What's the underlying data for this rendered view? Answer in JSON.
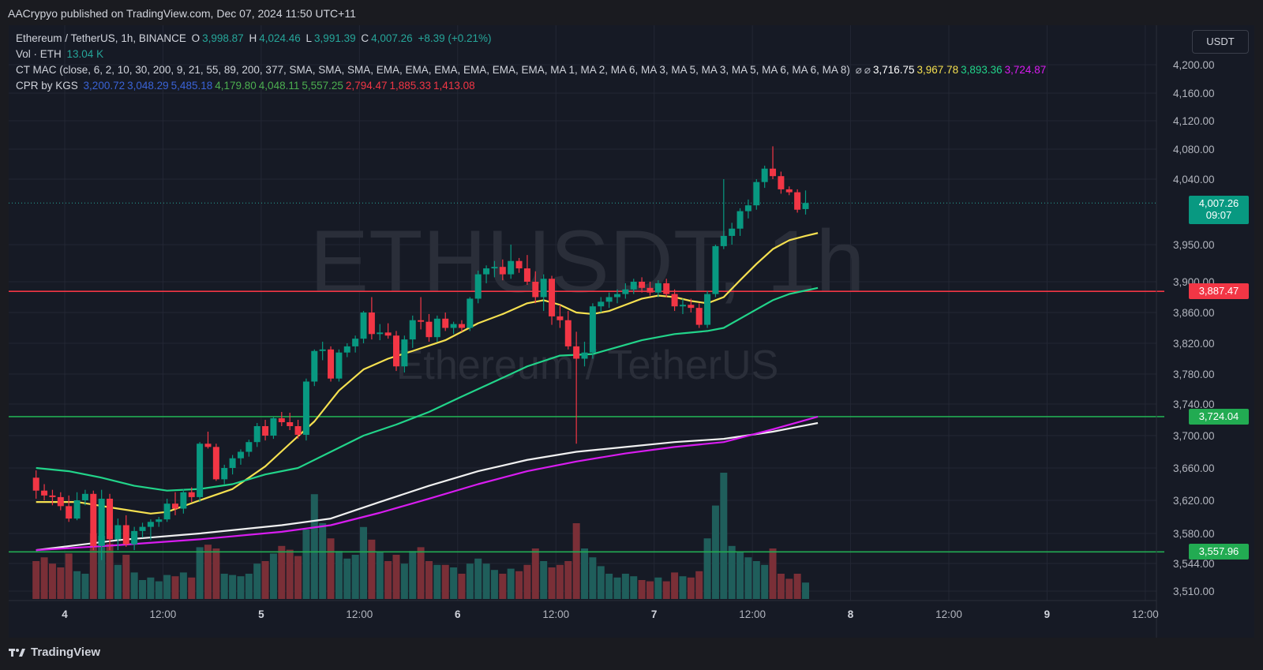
{
  "header": {
    "published": "AACrypyo published on TradingView.com, Dec 07, 2024 11:50 UTC+11"
  },
  "legend": {
    "symbol": "Ethereum / TetherUS, 1h, BINANCE",
    "o_label": "O",
    "o": "3,998.87",
    "h_label": "H",
    "h": "4,024.46",
    "l_label": "L",
    "l": "3,991.39",
    "c_label": "C",
    "c": "4,007.26",
    "change": "+8.39 (+0.21%)",
    "vol_label": "Vol · ETH",
    "vol": "13.04 K",
    "ma_label": "CT MAC (close, 6, 2, 10, 30, 200, 9, 21, 55, 89, 200, 377, SMA, SMA, SMA, EMA, EMA, EMA, EMA, EMA, EMA, MA 1, MA 2, MA 6, MA 3, MA 5, MA 3, MA 5, MA 6, MA 6, MA 8)",
    "ma_values": [
      {
        "text": "3,716.75",
        "color": "#ffffff"
      },
      {
        "text": "3,967.78",
        "color": "#f5e050"
      },
      {
        "text": "3,893.36",
        "color": "#22d48a"
      },
      {
        "text": "3,724.87",
        "color": "#d81cf0"
      }
    ],
    "cpr_label": "CPR by KGS",
    "cpr_values": [
      {
        "text": "3,200.72",
        "color": "#3a63d6"
      },
      {
        "text": "3,048.29",
        "color": "#3a63d6"
      },
      {
        "text": "5,485.18",
        "color": "#3a63d6"
      },
      {
        "text": "4,179.80",
        "color": "#4caf50"
      },
      {
        "text": "4,048.11",
        "color": "#4caf50"
      },
      {
        "text": "5,557.25",
        "color": "#4caf50"
      },
      {
        "text": "2,794.47",
        "color": "#f23645"
      },
      {
        "text": "1,885.33",
        "color": "#f23645"
      },
      {
        "text": "1,413.08",
        "color": "#f23645"
      }
    ]
  },
  "watermark": {
    "symbol": "ETHUSDT, 1h",
    "name": "Ethereum / TetherUS"
  },
  "currency_button": "USDT",
  "last_price": {
    "price": "4,007.26",
    "countdown": "09:07"
  },
  "hlines": [
    {
      "label": "3,887.47",
      "color": "#f23645",
      "value": 3887.47
    },
    {
      "label": "3,724.04",
      "color": "#22ab52",
      "value": 3724.04
    },
    {
      "label": "3,557.96",
      "color": "#22ab52",
      "value": 3557.96
    }
  ],
  "footer": {
    "brand": "TradingView"
  },
  "chart_data": {
    "type": "candlestick",
    "y_axis_ticks": [
      "4,200.00",
      "4,160.00",
      "4,120.00",
      "4,080.00",
      "4,040.00",
      "3,950.00",
      "3,900.00",
      "3,860.00",
      "3,820.00",
      "3,780.00",
      "3,740.00",
      "3,700.00",
      "3,660.00",
      "3,620.00",
      "3,580.00",
      "3,544.00",
      "3,510.00"
    ],
    "y_axis_tick_values": [
      4200,
      4160,
      4120,
      4080,
      4040,
      3950,
      3900,
      3860,
      3820,
      3780,
      3740,
      3700,
      3660,
      3620,
      3580,
      3544,
      3510
    ],
    "x_axis_ticks": [
      "4",
      "12:00",
      "5",
      "12:00",
      "6",
      "12:00",
      "7",
      "12:00",
      "8",
      "12:00",
      "9",
      "12:00"
    ],
    "x_axis_tick_hours": [
      0,
      12,
      24,
      36,
      48,
      60,
      72,
      84,
      96,
      108,
      120,
      132
    ],
    "x_axis_first_hour_offset": -3.5,
    "candles": [
      {
        "o": 3648,
        "h": 3657,
        "l": 3622,
        "c": 3632,
        "v": 0.3
      },
      {
        "o": 3632,
        "h": 3640,
        "l": 3620,
        "c": 3626,
        "v": 0.33
      },
      {
        "o": 3626,
        "h": 3633,
        "l": 3614,
        "c": 3624,
        "v": 0.28
      },
      {
        "o": 3624,
        "h": 3630,
        "l": 3608,
        "c": 3613,
        "v": 0.25
      },
      {
        "o": 3613,
        "h": 3626,
        "l": 3594,
        "c": 3598,
        "v": 0.36
      },
      {
        "o": 3598,
        "h": 3630,
        "l": 3596,
        "c": 3620,
        "v": 0.22
      },
      {
        "o": 3620,
        "h": 3633,
        "l": 3614,
        "c": 3628,
        "v": 0.2
      },
      {
        "o": 3628,
        "h": 3632,
        "l": 3560,
        "c": 3565,
        "v": 0.52
      },
      {
        "o": 3565,
        "h": 3633,
        "l": 3548,
        "c": 3622,
        "v": 0.5
      },
      {
        "o": 3622,
        "h": 3628,
        "l": 3560,
        "c": 3573,
        "v": 0.44
      },
      {
        "o": 3573,
        "h": 3598,
        "l": 3560,
        "c": 3590,
        "v": 0.27
      },
      {
        "o": 3590,
        "h": 3602,
        "l": 3564,
        "c": 3567,
        "v": 0.35
      },
      {
        "o": 3567,
        "h": 3588,
        "l": 3560,
        "c": 3583,
        "v": 0.21
      },
      {
        "o": 3583,
        "h": 3593,
        "l": 3575,
        "c": 3588,
        "v": 0.15
      },
      {
        "o": 3588,
        "h": 3597,
        "l": 3572,
        "c": 3594,
        "v": 0.17
      },
      {
        "o": 3594,
        "h": 3600,
        "l": 3588,
        "c": 3597,
        "v": 0.14
      },
      {
        "o": 3597,
        "h": 3622,
        "l": 3594,
        "c": 3616,
        "v": 0.19
      },
      {
        "o": 3616,
        "h": 3630,
        "l": 3602,
        "c": 3610,
        "v": 0.18
      },
      {
        "o": 3610,
        "h": 3634,
        "l": 3604,
        "c": 3630,
        "v": 0.21
      },
      {
        "o": 3630,
        "h": 3636,
        "l": 3618,
        "c": 3624,
        "v": 0.17
      },
      {
        "o": 3624,
        "h": 3692,
        "l": 3618,
        "c": 3690,
        "v": 0.41
      },
      {
        "o": 3690,
        "h": 3705,
        "l": 3684,
        "c": 3686,
        "v": 0.43
      },
      {
        "o": 3686,
        "h": 3690,
        "l": 3644,
        "c": 3646,
        "v": 0.4
      },
      {
        "o": 3646,
        "h": 3664,
        "l": 3640,
        "c": 3660,
        "v": 0.2
      },
      {
        "o": 3660,
        "h": 3676,
        "l": 3652,
        "c": 3672,
        "v": 0.19
      },
      {
        "o": 3672,
        "h": 3683,
        "l": 3664,
        "c": 3680,
        "v": 0.18
      },
      {
        "o": 3680,
        "h": 3695,
        "l": 3674,
        "c": 3692,
        "v": 0.2
      },
      {
        "o": 3692,
        "h": 3716,
        "l": 3686,
        "c": 3712,
        "v": 0.28
      },
      {
        "o": 3712,
        "h": 3720,
        "l": 3694,
        "c": 3700,
        "v": 0.3
      },
      {
        "o": 3700,
        "h": 3724,
        "l": 3696,
        "c": 3722,
        "v": 0.36
      },
      {
        "o": 3722,
        "h": 3730,
        "l": 3712,
        "c": 3717,
        "v": 0.42
      },
      {
        "o": 3717,
        "h": 3729,
        "l": 3707,
        "c": 3712,
        "v": 0.39
      },
      {
        "o": 3712,
        "h": 3720,
        "l": 3696,
        "c": 3701,
        "v": 0.34
      },
      {
        "o": 3701,
        "h": 3774,
        "l": 3694,
        "c": 3770,
        "v": 0.55
      },
      {
        "o": 3770,
        "h": 3812,
        "l": 3764,
        "c": 3810,
        "v": 0.83
      },
      {
        "o": 3810,
        "h": 3822,
        "l": 3798,
        "c": 3812,
        "v": 0.6
      },
      {
        "o": 3812,
        "h": 3816,
        "l": 3770,
        "c": 3774,
        "v": 0.48
      },
      {
        "o": 3774,
        "h": 3812,
        "l": 3770,
        "c": 3808,
        "v": 0.38
      },
      {
        "o": 3808,
        "h": 3820,
        "l": 3802,
        "c": 3816,
        "v": 0.32
      },
      {
        "o": 3816,
        "h": 3830,
        "l": 3808,
        "c": 3826,
        "v": 0.35
      },
      {
        "o": 3826,
        "h": 3862,
        "l": 3820,
        "c": 3860,
        "v": 0.57
      },
      {
        "o": 3860,
        "h": 3880,
        "l": 3825,
        "c": 3832,
        "v": 0.47
      },
      {
        "o": 3832,
        "h": 3845,
        "l": 3824,
        "c": 3834,
        "v": 0.37
      },
      {
        "o": 3834,
        "h": 3846,
        "l": 3826,
        "c": 3830,
        "v": 0.3
      },
      {
        "o": 3830,
        "h": 3836,
        "l": 3784,
        "c": 3790,
        "v": 0.35
      },
      {
        "o": 3790,
        "h": 3830,
        "l": 3782,
        "c": 3825,
        "v": 0.28
      },
      {
        "o": 3825,
        "h": 3856,
        "l": 3814,
        "c": 3850,
        "v": 0.38
      },
      {
        "o": 3850,
        "h": 3880,
        "l": 3838,
        "c": 3848,
        "v": 0.41
      },
      {
        "o": 3848,
        "h": 3858,
        "l": 3822,
        "c": 3828,
        "v": 0.3
      },
      {
        "o": 3828,
        "h": 3856,
        "l": 3822,
        "c": 3852,
        "v": 0.27
      },
      {
        "o": 3852,
        "h": 3860,
        "l": 3836,
        "c": 3840,
        "v": 0.27
      },
      {
        "o": 3840,
        "h": 3848,
        "l": 3832,
        "c": 3845,
        "v": 0.25
      },
      {
        "o": 3845,
        "h": 3850,
        "l": 3835,
        "c": 3840,
        "v": 0.2
      },
      {
        "o": 3840,
        "h": 3880,
        "l": 3836,
        "c": 3878,
        "v": 0.28
      },
      {
        "o": 3878,
        "h": 3915,
        "l": 3872,
        "c": 3910,
        "v": 0.32
      },
      {
        "o": 3910,
        "h": 3922,
        "l": 3898,
        "c": 3918,
        "v": 0.28
      },
      {
        "o": 3918,
        "h": 3928,
        "l": 3906,
        "c": 3920,
        "v": 0.23
      },
      {
        "o": 3920,
        "h": 3930,
        "l": 3902,
        "c": 3910,
        "v": 0.2
      },
      {
        "o": 3910,
        "h": 3950,
        "l": 3904,
        "c": 3928,
        "v": 0.24
      },
      {
        "o": 3928,
        "h": 3932,
        "l": 3912,
        "c": 3918,
        "v": 0.22
      },
      {
        "o": 3918,
        "h": 3936,
        "l": 3896,
        "c": 3900,
        "v": 0.27
      },
      {
        "o": 3900,
        "h": 3914,
        "l": 3872,
        "c": 3880,
        "v": 0.4
      },
      {
        "o": 3880,
        "h": 3910,
        "l": 3862,
        "c": 3904,
        "v": 0.3
      },
      {
        "o": 3904,
        "h": 3908,
        "l": 3844,
        "c": 3855,
        "v": 0.25
      },
      {
        "o": 3855,
        "h": 3870,
        "l": 3840,
        "c": 3850,
        "v": 0.27
      },
      {
        "o": 3850,
        "h": 3862,
        "l": 3812,
        "c": 3816,
        "v": 0.3
      },
      {
        "o": 3816,
        "h": 3835,
        "l": 3690,
        "c": 3800,
        "v": 0.6
      },
      {
        "o": 3800,
        "h": 3822,
        "l": 3790,
        "c": 3808,
        "v": 0.4
      },
      {
        "o": 3808,
        "h": 3872,
        "l": 3800,
        "c": 3868,
        "v": 0.33
      },
      {
        "o": 3868,
        "h": 3880,
        "l": 3860,
        "c": 3874,
        "v": 0.26
      },
      {
        "o": 3874,
        "h": 3886,
        "l": 3866,
        "c": 3880,
        "v": 0.2
      },
      {
        "o": 3880,
        "h": 3890,
        "l": 3872,
        "c": 3884,
        "v": 0.17
      },
      {
        "o": 3884,
        "h": 3898,
        "l": 3878,
        "c": 3890,
        "v": 0.2
      },
      {
        "o": 3890,
        "h": 3904,
        "l": 3884,
        "c": 3900,
        "v": 0.18
      },
      {
        "o": 3900,
        "h": 3906,
        "l": 3886,
        "c": 3892,
        "v": 0.15
      },
      {
        "o": 3892,
        "h": 3900,
        "l": 3882,
        "c": 3886,
        "v": 0.14
      },
      {
        "o": 3886,
        "h": 3902,
        "l": 3880,
        "c": 3898,
        "v": 0.17
      },
      {
        "o": 3898,
        "h": 3904,
        "l": 3880,
        "c": 3884,
        "v": 0.14
      },
      {
        "o": 3884,
        "h": 3890,
        "l": 3862,
        "c": 3868,
        "v": 0.21
      },
      {
        "o": 3868,
        "h": 3878,
        "l": 3858,
        "c": 3870,
        "v": 0.18
      },
      {
        "o": 3870,
        "h": 3878,
        "l": 3860,
        "c": 3866,
        "v": 0.17
      },
      {
        "o": 3866,
        "h": 3872,
        "l": 3840,
        "c": 3844,
        "v": 0.22
      },
      {
        "o": 3844,
        "h": 3888,
        "l": 3840,
        "c": 3884,
        "v": 0.48
      },
      {
        "o": 3884,
        "h": 3950,
        "l": 3880,
        "c": 3948,
        "v": 0.74
      },
      {
        "o": 3948,
        "h": 4040,
        "l": 3944,
        "c": 3962,
        "v": 1.0
      },
      {
        "o": 3962,
        "h": 3980,
        "l": 3950,
        "c": 3972,
        "v": 0.42
      },
      {
        "o": 3972,
        "h": 4000,
        "l": 3962,
        "c": 3996,
        "v": 0.37
      },
      {
        "o": 3996,
        "h": 4012,
        "l": 3986,
        "c": 4004,
        "v": 0.33
      },
      {
        "o": 4004,
        "h": 4040,
        "l": 3998,
        "c": 4036,
        "v": 0.3
      },
      {
        "o": 4036,
        "h": 4058,
        "l": 4028,
        "c": 4054,
        "v": 0.27
      },
      {
        "o": 4054,
        "h": 4084,
        "l": 4040,
        "c": 4044,
        "v": 0.4
      },
      {
        "o": 4044,
        "h": 4050,
        "l": 4020,
        "c": 4026,
        "v": 0.2
      },
      {
        "o": 4026,
        "h": 4030,
        "l": 4018,
        "c": 4022,
        "v": 0.16
      },
      {
        "o": 4022,
        "h": 4026,
        "l": 3994,
        "c": 3998,
        "v": 0.2
      },
      {
        "o": 3998.87,
        "h": 4024.46,
        "l": 3991.39,
        "c": 4007.26,
        "v": 0.13
      }
    ],
    "series": [
      {
        "name": "MA yellow",
        "color": "#f5e050",
        "values": [
          [
            0,
            3618
          ],
          [
            5,
            3618
          ],
          [
            10,
            3610
          ],
          [
            14,
            3604
          ],
          [
            16,
            3606
          ],
          [
            20,
            3620
          ],
          [
            24,
            3634
          ],
          [
            28,
            3662
          ],
          [
            31,
            3690
          ],
          [
            34,
            3718
          ],
          [
            37,
            3758
          ],
          [
            40,
            3786
          ],
          [
            43,
            3800
          ],
          [
            46,
            3810
          ],
          [
            50,
            3824
          ],
          [
            54,
            3846
          ],
          [
            57,
            3858
          ],
          [
            60,
            3872
          ],
          [
            62,
            3876
          ],
          [
            64,
            3870
          ],
          [
            66,
            3860
          ],
          [
            68,
            3858
          ],
          [
            70,
            3862
          ],
          [
            72,
            3870
          ],
          [
            74,
            3878
          ],
          [
            76,
            3882
          ],
          [
            78,
            3880
          ],
          [
            80,
            3875
          ],
          [
            82,
            3872
          ],
          [
            84,
            3880
          ],
          [
            86,
            3902
          ],
          [
            88,
            3924
          ],
          [
            90,
            3944
          ],
          [
            92,
            3956
          ],
          [
            94,
            3962
          ],
          [
            95.5,
            3966
          ]
        ]
      },
      {
        "name": "MA green",
        "color": "#22d48a",
        "values": [
          [
            0,
            3660
          ],
          [
            4,
            3656
          ],
          [
            8,
            3648
          ],
          [
            12,
            3638
          ],
          [
            16,
            3632
          ],
          [
            20,
            3634
          ],
          [
            24,
            3640
          ],
          [
            28,
            3652
          ],
          [
            32,
            3660
          ],
          [
            36,
            3680
          ],
          [
            40,
            3700
          ],
          [
            44,
            3714
          ],
          [
            48,
            3730
          ],
          [
            52,
            3750
          ],
          [
            56,
            3770
          ],
          [
            60,
            3790
          ],
          [
            64,
            3804
          ],
          [
            66,
            3805
          ],
          [
            68,
            3806
          ],
          [
            70,
            3812
          ],
          [
            72,
            3818
          ],
          [
            74,
            3824
          ],
          [
            76,
            3828
          ],
          [
            78,
            3832
          ],
          [
            80,
            3834
          ],
          [
            82,
            3836
          ],
          [
            84,
            3840
          ],
          [
            86,
            3852
          ],
          [
            88,
            3864
          ],
          [
            90,
            3876
          ],
          [
            92,
            3884
          ],
          [
            95.5,
            3892
          ]
        ]
      },
      {
        "name": "MA white",
        "color": "#f0f0f0",
        "values": [
          [
            0,
            3560
          ],
          [
            10,
            3572
          ],
          [
            20,
            3580
          ],
          [
            30,
            3590
          ],
          [
            36,
            3598
          ],
          [
            42,
            3618
          ],
          [
            48,
            3638
          ],
          [
            54,
            3656
          ],
          [
            60,
            3670
          ],
          [
            66,
            3680
          ],
          [
            72,
            3686
          ],
          [
            78,
            3692
          ],
          [
            84,
            3696
          ],
          [
            90,
            3705
          ],
          [
            95.5,
            3716
          ]
        ]
      },
      {
        "name": "MA magenta",
        "color": "#d81cf0",
        "values": [
          [
            0,
            3560
          ],
          [
            10,
            3566
          ],
          [
            20,
            3573
          ],
          [
            30,
            3582
          ],
          [
            36,
            3590
          ],
          [
            42,
            3605
          ],
          [
            48,
            3622
          ],
          [
            54,
            3640
          ],
          [
            60,
            3656
          ],
          [
            66,
            3668
          ],
          [
            72,
            3678
          ],
          [
            78,
            3686
          ],
          [
            84,
            3692
          ],
          [
            90,
            3708
          ],
          [
            95.5,
            3724
          ]
        ]
      }
    ]
  }
}
